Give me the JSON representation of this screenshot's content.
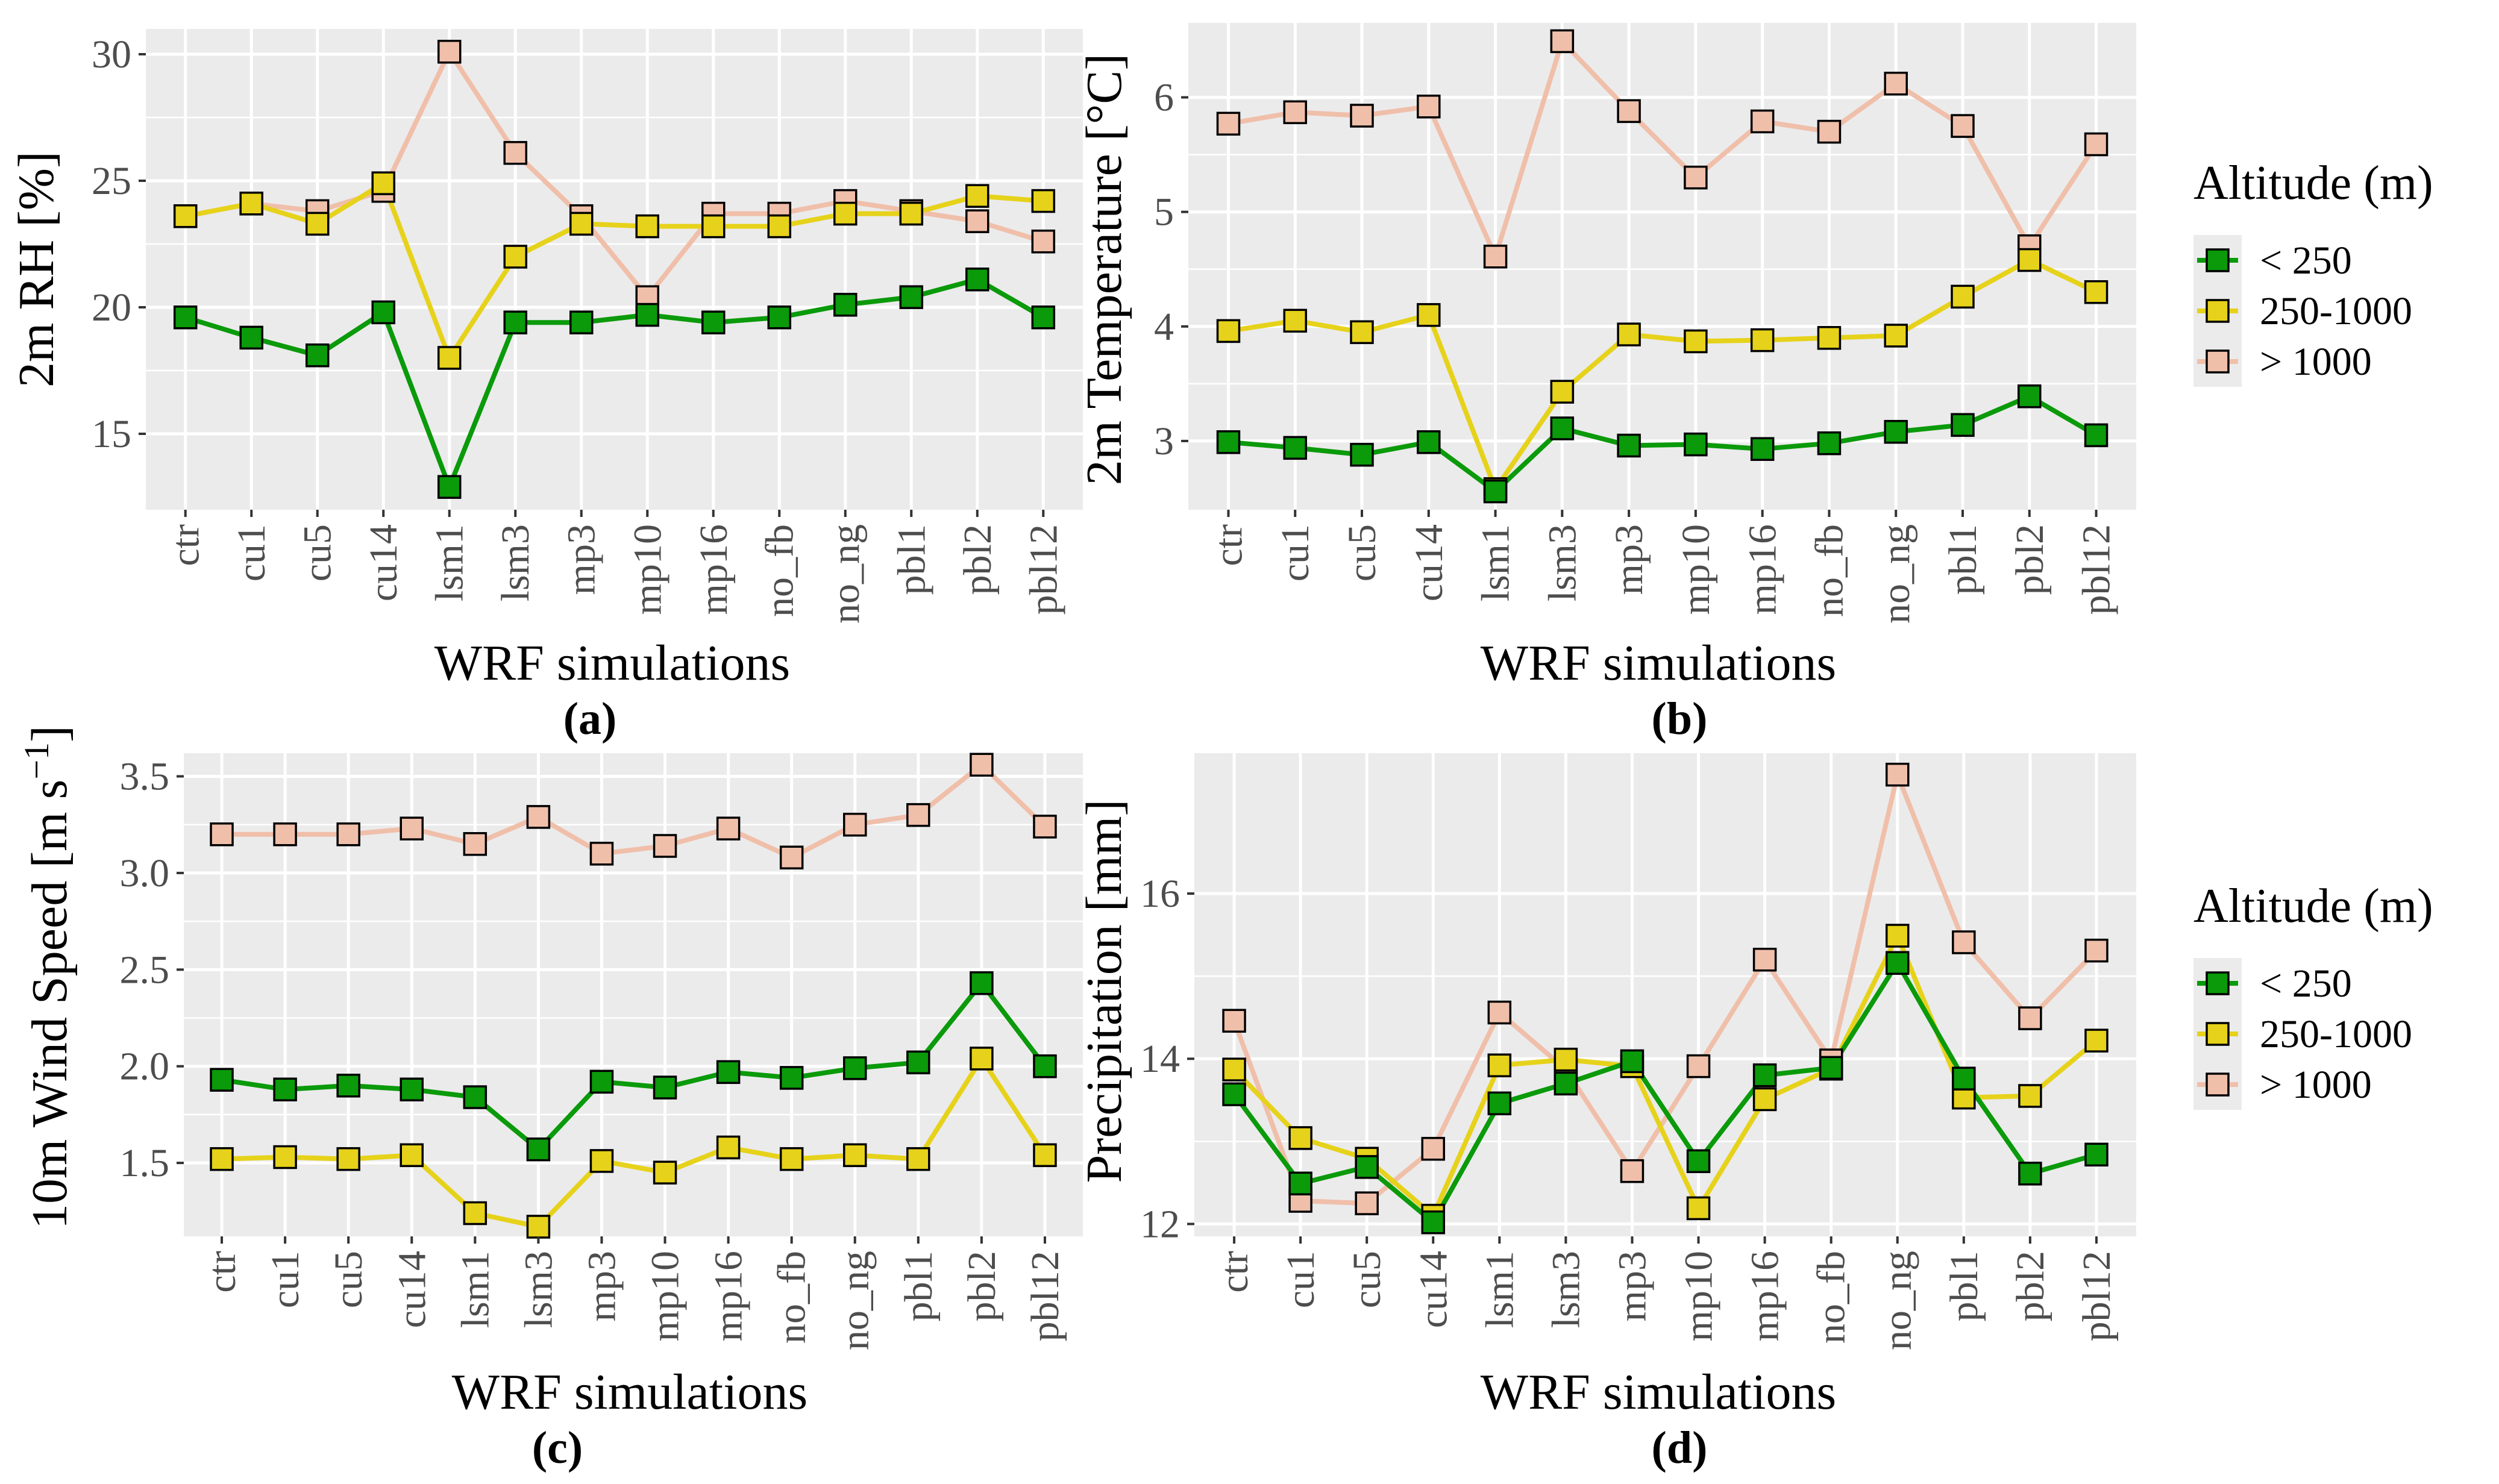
{
  "colors": {
    "panel_bg": "#ebebeb",
    "grid": "#ffffff",
    "tick": "#333333",
    "low": "#0a9a0a",
    "mid": "#e6d21a",
    "high": "#f0bfaa"
  },
  "legend": {
    "title": "Altitude (m)",
    "entries": [
      "< 250",
      "250-1000",
      "> 1000"
    ]
  },
  "chart_data": [
    {
      "type": "line",
      "panel": "(a)",
      "title": "",
      "xlabel": "WRF simulations",
      "ylabel": "2m RH [%]",
      "ylim": [
        12.0,
        31.0
      ],
      "yticks": [
        15,
        20,
        25,
        30
      ],
      "ytick_labels": [
        "15",
        "20",
        "25",
        "30"
      ],
      "categories": [
        "ctr",
        "cu1",
        "cu5",
        "cu14",
        "lsm1",
        "lsm3",
        "mp3",
        "mp10",
        "mp16",
        "no_fb",
        "no_ng",
        "pbl1",
        "pbl2",
        "pbl12"
      ],
      "series": [
        {
          "name": "> 1000",
          "values": [
            23.6,
            24.1,
            23.8,
            24.6,
            30.1,
            26.1,
            23.6,
            20.4,
            23.7,
            23.7,
            24.2,
            23.8,
            23.4,
            22.6
          ]
        },
        {
          "name": "250-1000",
          "values": [
            23.6,
            24.1,
            23.3,
            24.9,
            18.0,
            22.0,
            23.3,
            23.2,
            23.2,
            23.2,
            23.7,
            23.7,
            24.4,
            24.2
          ]
        },
        {
          "name": "< 250",
          "values": [
            19.6,
            18.8,
            18.1,
            19.8,
            12.9,
            19.4,
            19.4,
            19.7,
            19.4,
            19.6,
            20.1,
            20.4,
            21.1,
            19.6
          ]
        }
      ]
    },
    {
      "type": "line",
      "panel": "(b)",
      "title": "",
      "xlabel": "WRF simulations",
      "ylabel": "2m Temperature [°C]",
      "ylim": [
        2.4,
        6.65
      ],
      "yticks": [
        3,
        4,
        5,
        6
      ],
      "ytick_labels": [
        "3",
        "4",
        "5",
        "6"
      ],
      "categories": [
        "ctr",
        "cu1",
        "cu5",
        "cu14",
        "lsm1",
        "lsm3",
        "mp3",
        "mp10",
        "mp16",
        "no_fb",
        "no_ng",
        "pbl1",
        "pbl2",
        "pbl12"
      ],
      "series": [
        {
          "name": "> 1000",
          "values": [
            5.77,
            5.87,
            5.84,
            5.92,
            4.61,
            6.49,
            5.88,
            5.3,
            5.79,
            5.7,
            6.12,
            5.75,
            4.7,
            5.59
          ]
        },
        {
          "name": "250-1000",
          "values": [
            3.96,
            4.05,
            3.95,
            4.1,
            2.58,
            3.43,
            3.93,
            3.87,
            3.88,
            3.9,
            3.92,
            4.26,
            4.58,
            4.3
          ]
        },
        {
          "name": "< 250",
          "values": [
            2.99,
            2.94,
            2.88,
            2.99,
            2.56,
            3.11,
            2.96,
            2.97,
            2.93,
            2.98,
            3.08,
            3.14,
            3.39,
            3.05
          ]
        }
      ]
    },
    {
      "type": "line",
      "panel": "(c)",
      "title": "",
      "xlabel": "WRF simulations",
      "ylabel_main": "10m Wind Speed [m s",
      "ylabel_sup": "−1",
      "ylabel_end": "]",
      "ylim": [
        1.12,
        3.62
      ],
      "yticks": [
        1.5,
        2.0,
        2.5,
        3.0,
        3.5
      ],
      "ytick_labels": [
        "1.5",
        "2.0",
        "2.5",
        "3.0",
        "3.5"
      ],
      "categories": [
        "ctr",
        "cu1",
        "cu5",
        "cu14",
        "lsm1",
        "lsm3",
        "mp3",
        "mp10",
        "mp16",
        "no_fb",
        "no_ng",
        "pbl1",
        "pbl2",
        "pbl12"
      ],
      "series": [
        {
          "name": "> 1000",
          "values": [
            3.2,
            3.2,
            3.2,
            3.23,
            3.15,
            3.29,
            3.1,
            3.14,
            3.23,
            3.08,
            3.25,
            3.3,
            3.56,
            3.24
          ]
        },
        {
          "name": "250-1000",
          "values": [
            1.52,
            1.53,
            1.52,
            1.54,
            1.24,
            1.17,
            1.51,
            1.45,
            1.58,
            1.52,
            1.54,
            1.52,
            2.04,
            1.54
          ]
        },
        {
          "name": "< 250",
          "values": [
            1.93,
            1.88,
            1.9,
            1.88,
            1.84,
            1.57,
            1.92,
            1.89,
            1.97,
            1.94,
            1.99,
            2.02,
            2.43,
            2.0
          ]
        }
      ]
    },
    {
      "type": "line",
      "panel": "(d)",
      "title": "",
      "xlabel": "WRF simulations",
      "ylabel": "Precipitation [mm]",
      "ylim": [
        11.85,
        17.7
      ],
      "yticks": [
        12,
        14,
        16
      ],
      "ytick_labels": [
        "12",
        "14",
        "16"
      ],
      "categories": [
        "ctr",
        "cu1",
        "cu5",
        "cu14",
        "lsm1",
        "lsm3",
        "mp3",
        "mp10",
        "mp16",
        "no_fb",
        "no_ng",
        "pbl1",
        "pbl2",
        "pbl12"
      ],
      "series": [
        {
          "name": "> 1000",
          "values": [
            14.46,
            12.28,
            12.25,
            12.91,
            14.56,
            13.87,
            12.64,
            13.91,
            15.2,
            13.98,
            17.44,
            15.41,
            14.49,
            15.31
          ]
        },
        {
          "name": "250-1000",
          "values": [
            13.87,
            13.04,
            12.79,
            12.1,
            13.92,
            13.99,
            13.91,
            12.19,
            13.51,
            13.88,
            15.49,
            13.53,
            13.55,
            14.22
          ]
        },
        {
          "name": "< 250",
          "values": [
            13.57,
            12.49,
            12.69,
            12.02,
            13.46,
            13.7,
            13.97,
            12.76,
            13.8,
            13.89,
            15.16,
            13.76,
            12.61,
            12.84
          ]
        }
      ]
    }
  ]
}
